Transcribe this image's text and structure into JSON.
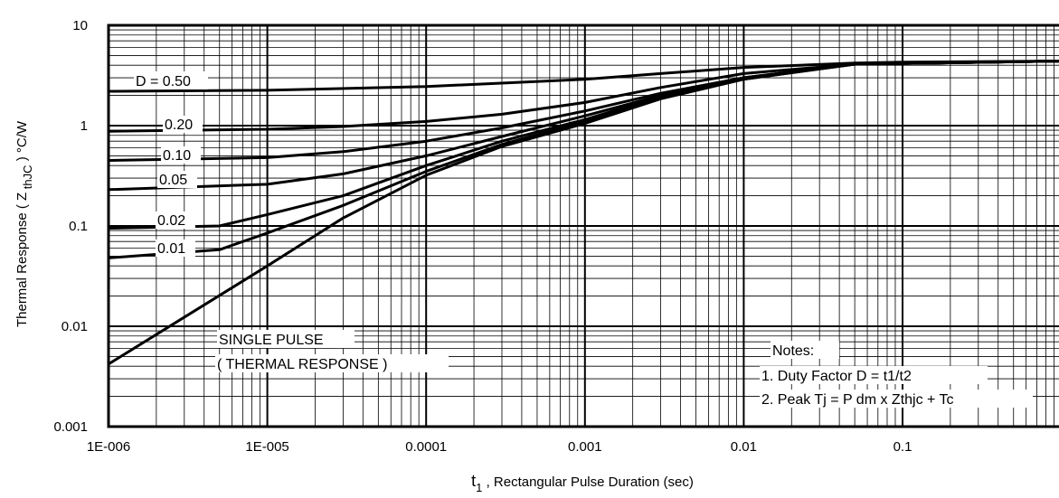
{
  "chart_data": {
    "type": "line",
    "x_scale": "log",
    "y_scale": "log",
    "xlim": [
      1e-06,
      1
    ],
    "ylim": [
      0.001,
      10
    ],
    "grid": true,
    "x_tick_labels": [
      "1E-006",
      "1E-005",
      "0.0001",
      "0.001",
      "0.01",
      "0.1"
    ],
    "x_tick_values": [
      1e-06,
      1e-05,
      0.0001,
      0.001,
      0.01,
      0.1
    ],
    "y_tick_labels": [
      "0.001",
      "0.01",
      "0.1",
      "1",
      "10"
    ],
    "y_tick_values": [
      0.001,
      0.01,
      0.1,
      1,
      10
    ],
    "xlabel_main": "t",
    "xlabel_sub": "1",
    "xlabel_rest": " , Rectangular Pulse Duration (sec)",
    "ylabel_main": "Thermal Response ( Z",
    "ylabel_sub": " thJC",
    "ylabel_rest": " ) °C/W",
    "series": [
      {
        "name": "D = 0.50",
        "x": [
          1e-06,
          1e-05,
          0.0001,
          0.001,
          0.003,
          0.01,
          0.05,
          0.1,
          1
        ],
        "y": [
          2.2,
          2.25,
          2.45,
          2.9,
          3.3,
          3.8,
          4.2,
          4.3,
          4.4
        ]
      },
      {
        "name": "0.20",
        "x": [
          1e-06,
          1e-05,
          3e-05,
          0.0001,
          0.0003,
          0.001,
          0.003,
          0.01,
          0.05,
          1
        ],
        "y": [
          0.88,
          0.92,
          0.98,
          1.1,
          1.3,
          1.7,
          2.4,
          3.3,
          4.1,
          4.4
        ]
      },
      {
        "name": "0.10",
        "x": [
          1e-06,
          1e-05,
          3e-05,
          0.0001,
          0.0003,
          0.001,
          0.003,
          0.01,
          0.05,
          1
        ],
        "y": [
          0.45,
          0.48,
          0.55,
          0.7,
          0.95,
          1.4,
          2.1,
          3.0,
          4.1,
          4.4
        ]
      },
      {
        "name": "0.05",
        "x": [
          1e-06,
          1e-05,
          3e-05,
          0.0001,
          0.0003,
          0.001,
          0.003,
          0.01,
          0.05,
          1
        ],
        "y": [
          0.23,
          0.26,
          0.33,
          0.5,
          0.78,
          1.25,
          2.0,
          3.0,
          4.1,
          4.4
        ]
      },
      {
        "name": "0.02",
        "x": [
          1e-06,
          5e-06,
          1e-05,
          3e-05,
          0.0001,
          0.0003,
          0.001,
          0.003,
          0.01,
          0.05,
          1
        ],
        "y": [
          0.095,
          0.1,
          0.13,
          0.2,
          0.4,
          0.7,
          1.15,
          1.95,
          2.95,
          4.1,
          4.4
        ]
      },
      {
        "name": "0.01",
        "x": [
          1e-06,
          5e-06,
          1e-05,
          3e-05,
          0.0001,
          0.0003,
          0.001,
          0.003,
          0.01,
          0.05,
          1
        ],
        "y": [
          0.048,
          0.058,
          0.085,
          0.16,
          0.35,
          0.65,
          1.1,
          1.9,
          2.9,
          4.1,
          4.4
        ]
      },
      {
        "name": "SINGLE PULSE",
        "x": [
          1e-06,
          1e-05,
          3e-05,
          0.0001,
          0.0003,
          0.001,
          0.003,
          0.01,
          0.05,
          1
        ],
        "y": [
          0.0042,
          0.04,
          0.12,
          0.32,
          0.62,
          1.05,
          1.85,
          2.9,
          4.1,
          4.4
        ]
      }
    ],
    "annotations": {
      "single_pulse_line1": "SINGLE PULSE",
      "single_pulse_line2": "( THERMAL RESPONSE )",
      "notes_title": "Notes:",
      "note1": "1. Duty Factor D = t1/t2",
      "note2": "2. Peak Tj = P dm x Zthjc + Tc"
    }
  }
}
